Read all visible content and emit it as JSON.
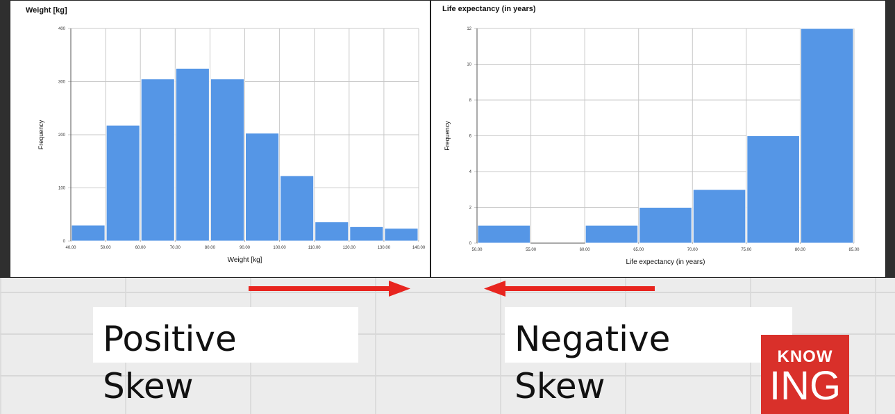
{
  "left_label": {
    "line1": "Positive",
    "line2": "Skew"
  },
  "right_label": {
    "line1": "Negative",
    "line2": "Skew"
  },
  "logo": {
    "top": "KNOW",
    "bottom": "ING",
    "color": "#d9302a"
  },
  "colors": {
    "bar": "#5596e6",
    "arrow": "#e8251f"
  },
  "chart_data": [
    {
      "type": "bar",
      "title": "Weight [kg]",
      "xlabel": "Weight [kg]",
      "ylabel": "Frequency",
      "x_ticks": [
        "40.00",
        "50.00",
        "60.00",
        "70.00",
        "80.00",
        "90.00",
        "100.00",
        "110.00",
        "120.00",
        "130.00",
        "140.00"
      ],
      "y_ticks": [
        "0",
        "100",
        "200",
        "300",
        "400"
      ],
      "ylim": [
        0,
        400
      ],
      "bins": [
        {
          "from": 40,
          "to": 50,
          "value": 30
        },
        {
          "from": 50,
          "to": 60,
          "value": 218
        },
        {
          "from": 60,
          "to": 70,
          "value": 305
        },
        {
          "from": 70,
          "to": 80,
          "value": 325
        },
        {
          "from": 80,
          "to": 90,
          "value": 305
        },
        {
          "from": 90,
          "to": 100,
          "value": 203
        },
        {
          "from": 100,
          "to": 110,
          "value": 123
        },
        {
          "from": 110,
          "to": 120,
          "value": 36
        },
        {
          "from": 120,
          "to": 130,
          "value": 27
        },
        {
          "from": 130,
          "to": 140,
          "value": 24
        }
      ],
      "grid": true
    },
    {
      "type": "bar",
      "title": "Life expectancy (in years)",
      "xlabel": "Life expectancy (in years)",
      "ylabel": "Frequency",
      "x_ticks": [
        "50.00",
        "55.00",
        "60.00",
        "65.00",
        "70.00",
        "75.00",
        "80.00",
        "85.00"
      ],
      "y_ticks": [
        "0",
        "2",
        "4",
        "6",
        "8",
        "10",
        "12"
      ],
      "ylim": [
        0,
        12
      ],
      "bins": [
        {
          "from": 50,
          "to": 55,
          "value": 1
        },
        {
          "from": 55,
          "to": 60,
          "value": 0
        },
        {
          "from": 60,
          "to": 65,
          "value": 1
        },
        {
          "from": 65,
          "to": 70,
          "value": 2
        },
        {
          "from": 70,
          "to": 75,
          "value": 3
        },
        {
          "from": 75,
          "to": 80,
          "value": 6
        },
        {
          "from": 80,
          "to": 85,
          "value": 12
        }
      ],
      "grid": true
    }
  ]
}
